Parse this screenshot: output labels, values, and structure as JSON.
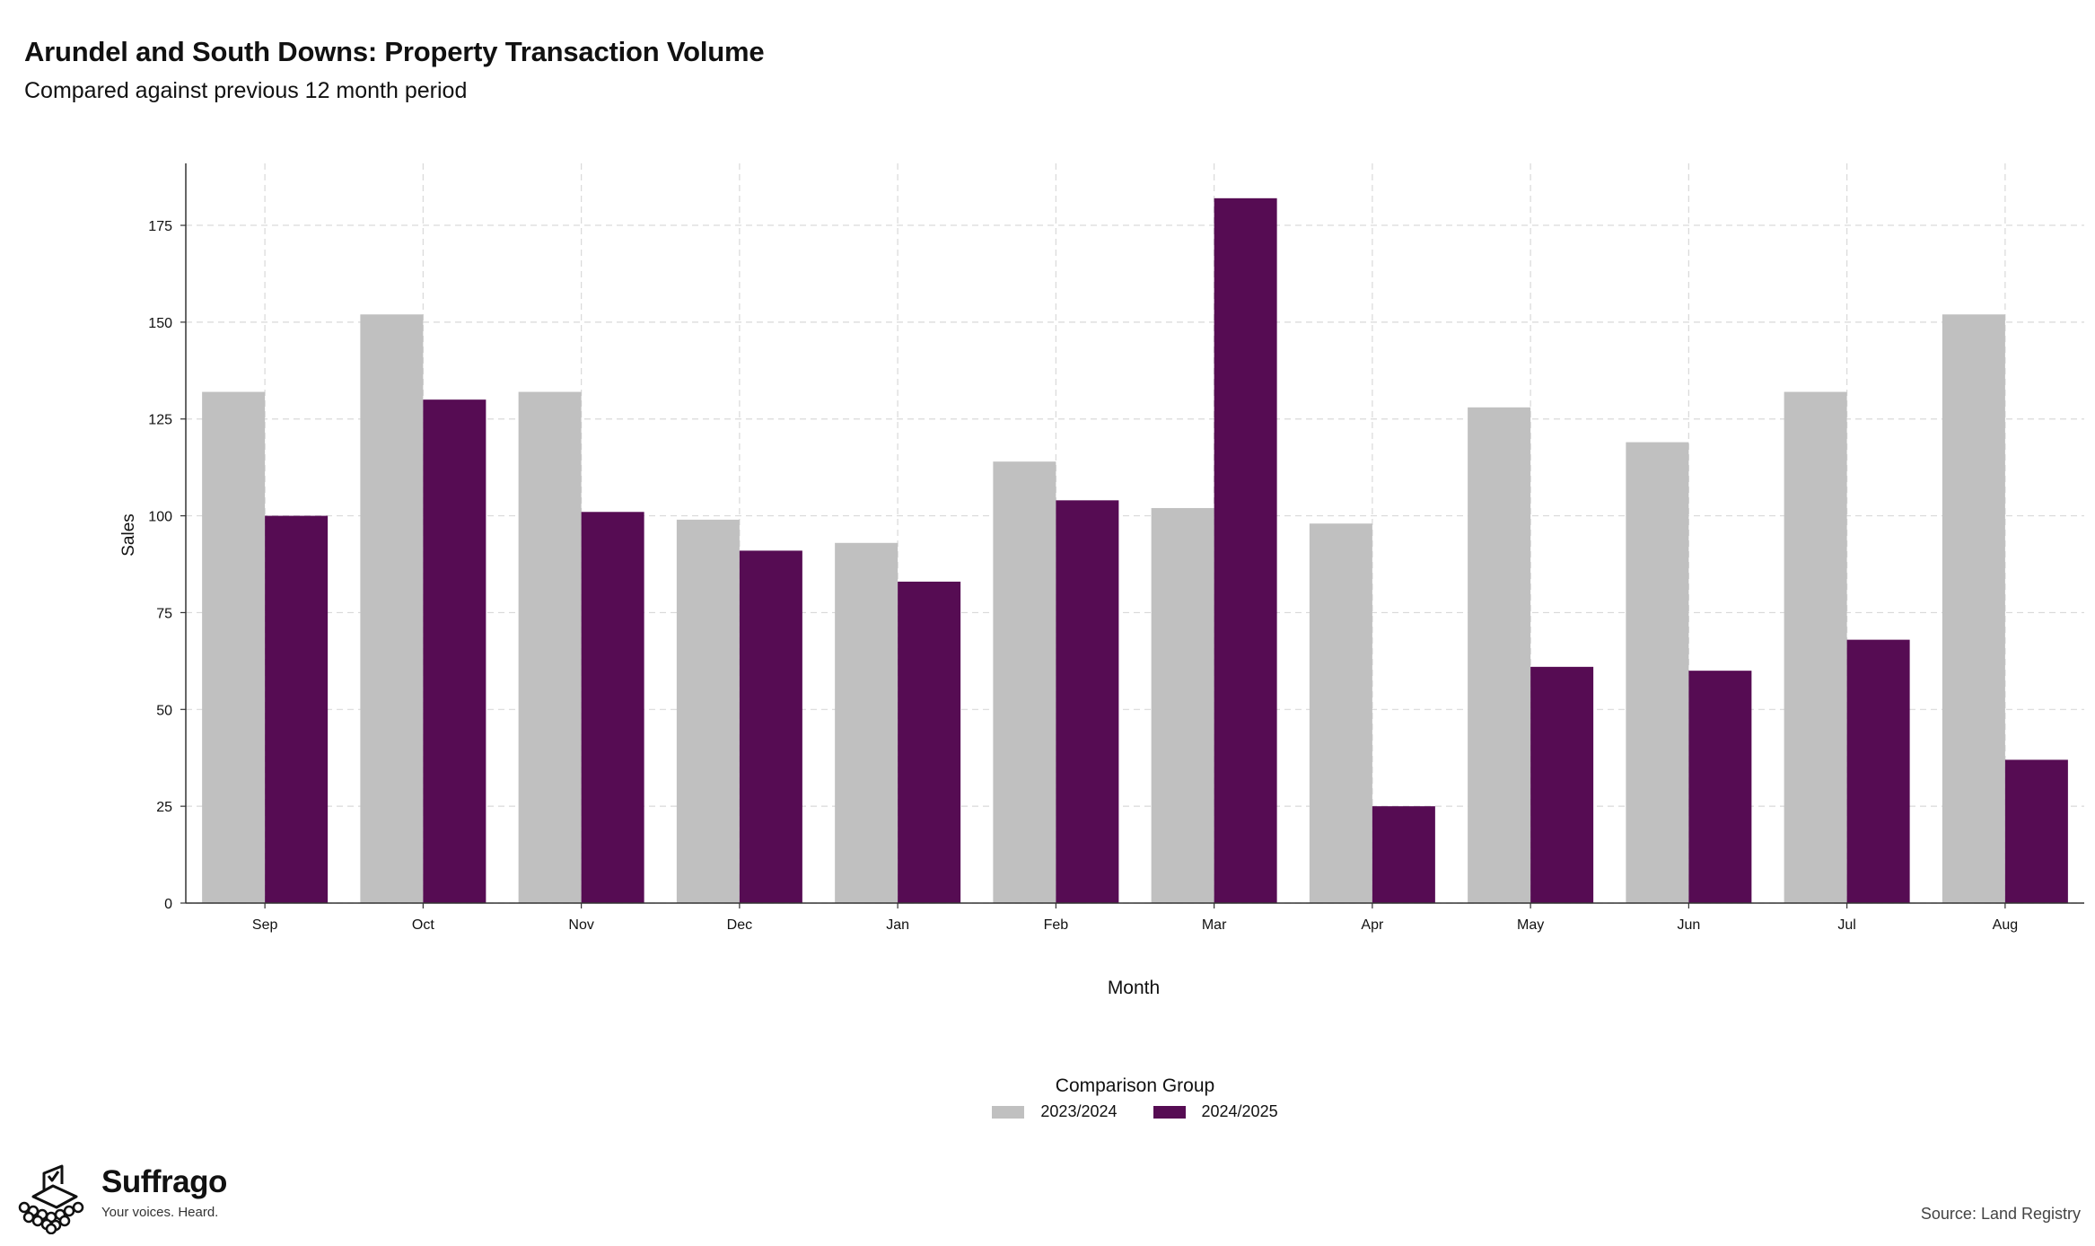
{
  "header": {
    "title": "Arundel and South Downs: Property Transaction Volume",
    "subtitle": "Compared against previous 12 month period"
  },
  "chart_data": {
    "type": "bar",
    "categories": [
      "Sep",
      "Oct",
      "Nov",
      "Dec",
      "Jan",
      "Feb",
      "Mar",
      "Apr",
      "May",
      "Jun",
      "Jul",
      "Aug"
    ],
    "series": [
      {
        "name": "2023/2024",
        "color": "#c0c0c0",
        "values": [
          132,
          152,
          132,
          99,
          93,
          114,
          102,
          98,
          128,
          119,
          132,
          152
        ]
      },
      {
        "name": "2024/2025",
        "color": "#560c53",
        "values": [
          100,
          130,
          101,
          91,
          83,
          104,
          182,
          25,
          61,
          60,
          68,
          37
        ]
      }
    ],
    "xlabel": "Month",
    "ylabel": "Sales",
    "ylim": [
      0,
      191
    ],
    "yticks": [
      0,
      25,
      50,
      75,
      100,
      125,
      150,
      175
    ],
    "grid": true,
    "legend_title": "Comparison Group",
    "legend_position": "bottom"
  },
  "brand": {
    "name": "Suffrago",
    "tagline": "Your voices. Heard.",
    "logo_icon": "ballot-box-icon"
  },
  "source": "Source: Land Registry"
}
